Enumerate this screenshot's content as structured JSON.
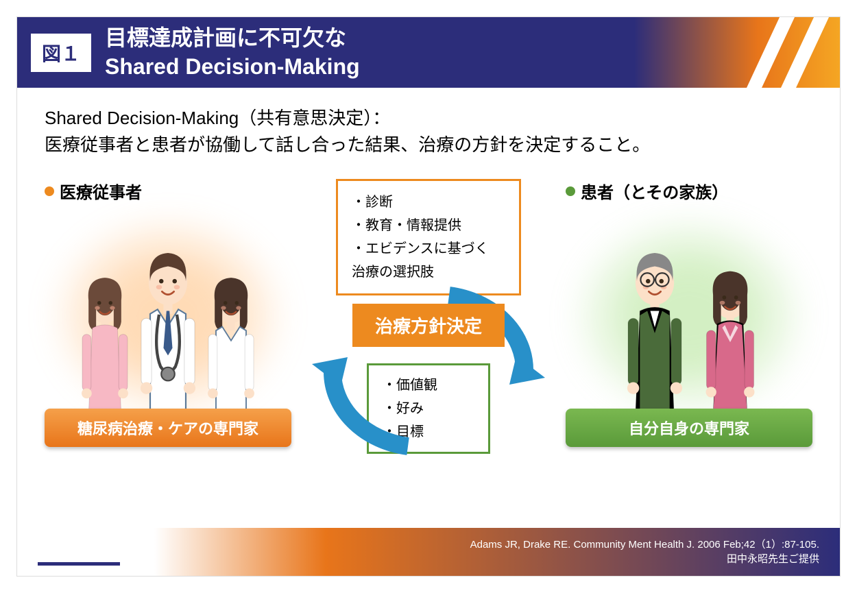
{
  "header": {
    "figLabel": "図１",
    "titleLine1": "目標達成計画に不可欠な",
    "titleLine2": "Shared Decision-Making",
    "bgColor": "#2c2d7a",
    "accentColor": "#e8751a"
  },
  "definition": {
    "line1": "Shared Decision-Making（共有意思決定）：",
    "line2": "医療従事者と患者が協働して話し合った結果、治療の方針を決定すること。"
  },
  "left": {
    "label": "医療従事者",
    "bulletColor": "#ed8a1f",
    "bottomLabel": "糖尿病治療・ケアの専門家",
    "bottomColor": "#e8751a",
    "glowColor": "#ffb870"
  },
  "right": {
    "label": "患者（とその家族）",
    "bulletColor": "#5a9a3a",
    "bottomLabel": "自分自身の専門家",
    "bottomColor": "#5a9a3a",
    "glowColor": "#a8e088"
  },
  "center": {
    "topBox": {
      "borderColor": "#ed8a1f",
      "items": [
        "診断",
        "教育・情報提供",
        "エビデンスに基づく\n治療の選択肢"
      ]
    },
    "centerLabel": "治療方針決定",
    "centerColor": "#ed8a1f",
    "bottomBox": {
      "borderColor": "#5a9a3a",
      "items": [
        "価値観",
        "好み",
        "目標"
      ]
    },
    "arrowColor": "#2890c9"
  },
  "citation": {
    "line1": "Adams JR, Drake RE.  Community Ment Health J. 2006 Feb;42（1）:87-105.",
    "line2": "田中永昭先生ご提供"
  },
  "people": {
    "medical": [
      {
        "role": "nurse",
        "coat": "#f7b8c4",
        "hair": "#6b4a3a",
        "skin": "#fce0c8"
      },
      {
        "role": "doctor-male",
        "coat": "#ffffff",
        "hair": "#5a3d2e",
        "skin": "#fce0c8",
        "tie": "#3a5a8a"
      },
      {
        "role": "doctor-female",
        "coat": "#ffffff",
        "hair": "#4a342a",
        "skin": "#fce0c8"
      }
    ],
    "patients": [
      {
        "role": "elderly-male",
        "top": "#4a6b3a",
        "hair": "#888",
        "skin": "#fce0c8",
        "glasses": true
      },
      {
        "role": "elderly-female",
        "top": "#d8698a",
        "hair": "#4a342a",
        "skin": "#fce0c8"
      }
    ]
  }
}
